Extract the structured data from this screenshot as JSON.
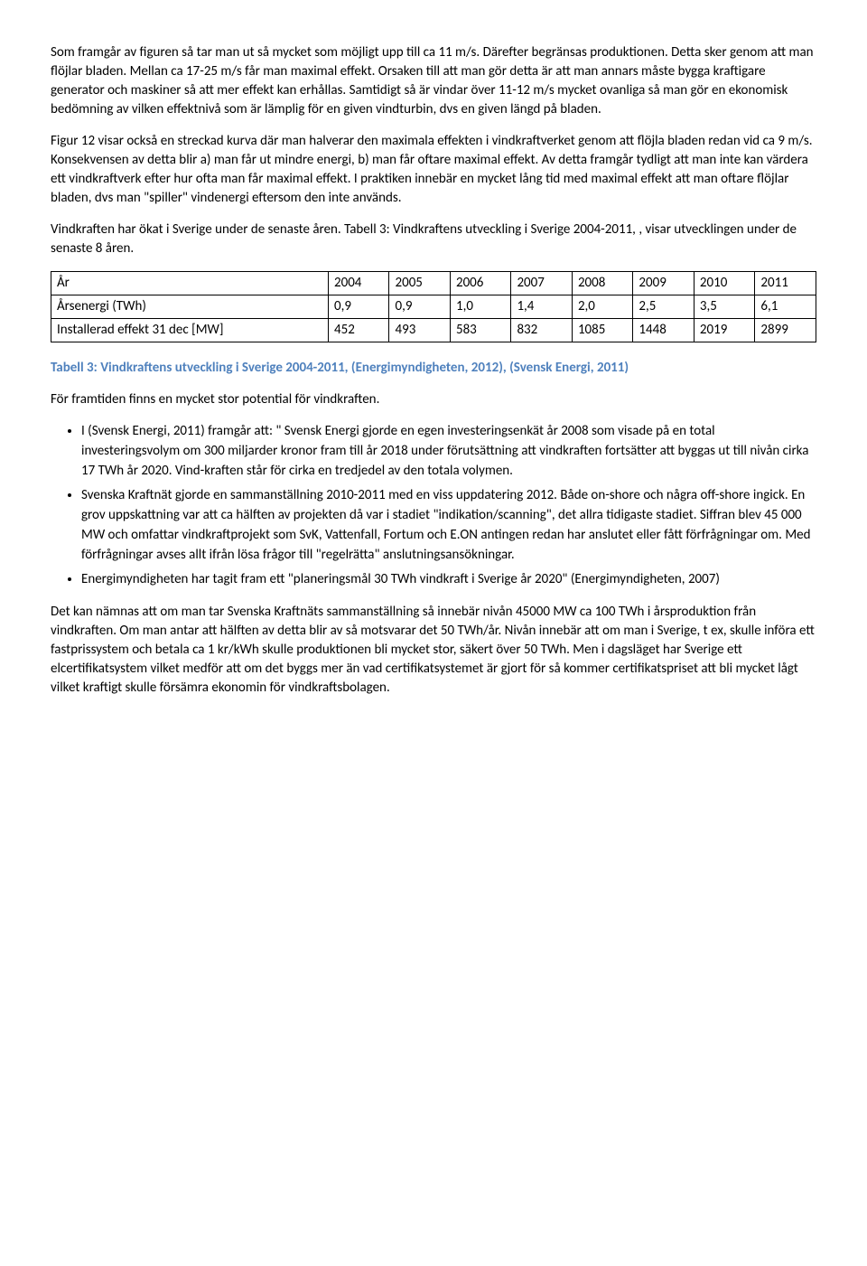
{
  "paragraphs": {
    "p1": "Som framgår av figuren så tar man ut så mycket som möjligt upp till ca 11 m/s. Därefter begränsas produktionen. Detta sker genom att man flöjlar bladen. Mellan ca 17-25 m/s får man maximal effekt. Orsaken till att man gör detta är att man annars måste bygga kraftigare generator och maskiner så att mer effekt kan erhållas. Samtidigt så är vindar över 11-12 m/s mycket ovanliga så man gör en ekonomisk bedömning av vilken effektnivå som är lämplig för en given vindturbin, dvs en given längd på bladen.",
    "p2": "Figur 12 visar också en streckad kurva där man halverar den maximala effekten i vindkraftverket genom att flöjla bladen redan vid ca 9 m/s. Konsekvensen av detta blir a) man får ut mindre energi, b) man får oftare maximal effekt. Av detta framgår tydligt att man inte kan värdera ett vindkraftverk efter hur ofta man får maximal effekt. I praktiken innebär en mycket lång tid med maximal effekt att man oftare flöjlar bladen, dvs man \"spiller\" vindenergi eftersom den inte används.",
    "p3": "Vindkraften har ökat i Sverige under de senaste åren. Tabell 3: Vindkraftens utveckling i Sverige 2004-2011, , visar utvecklingen under de senaste 8 åren.",
    "caption": "Tabell 3: Vindkraftens utveckling i Sverige 2004-2011, (Energimyndigheten, 2012), (Svensk Energi, 2011)",
    "p4": "För framtiden finns en mycket stor potential för vindkraften.",
    "p5": "Det kan nämnas att om man tar Svenska Kraftnäts sammanställning så innebär nivån 45000 MW ca 100 TWh i årsproduktion från vindkraften. Om man antar att hälften av detta blir av så motsvarar det 50 TWh/år. Nivån innebär att om man i Sverige, t ex, skulle införa ett fastprissystem och betala ca 1 kr/kWh skulle produktionen bli mycket stor, säkert över 50 TWh. Men i dagsläget har Sverige ett elcertifikatsystem vilket medför att om det byggs mer än vad certifikatsystemet är gjort för så kommer certifikatspriset att bli mycket lågt vilket kraftigt skulle försämra ekonomin för vindkraftsbolagen."
  },
  "table": {
    "headers": [
      "År",
      "2004",
      "2005",
      "2006",
      "2007",
      "2008",
      "2009",
      "2010",
      "2011"
    ],
    "row1_label": "Årsenergi (TWh)",
    "row1": [
      "0,9",
      "0,9",
      "1,0",
      "1,4",
      "2,0",
      "2,5",
      "3,5",
      "6,1"
    ],
    "row2_label": "Installerad effekt 31 dec [MW]",
    "row2": [
      "452",
      "493",
      "583",
      "832",
      "1085",
      "1448",
      "2019",
      "2899"
    ]
  },
  "bullets": {
    "b1": "I (Svensk Energi, 2011) framgår att: \" Svensk Energi gjorde en egen investeringsenkät år 2008 som visade på en total investeringsvolym om 300 miljarder kronor fram till år 2018 under förutsättning att vindkraften fortsätter att byggas ut till nivån cirka 17 TWh år 2020. Vind-kraften står för cirka en tredjedel av den totala volymen.",
    "b2": "Svenska Kraftnät gjorde en sammanställning 2010-2011 med en viss uppdatering 2012. Både on-shore och några off-shore ingick. En grov uppskattning var att ca hälften av projekten då var i stadiet \"indikation/scanning\", det allra tidigaste stadiet. Siffran blev 45 000 MW och omfattar vindkraftprojekt som SvK, Vattenfall, Fortum och E.ON antingen redan har anslutet eller fått förfrågningar om. Med förfrågningar avses allt ifrån lösa frågor till \"regelrätta\" anslutningsansökningar.",
    "b3": "Energimyndigheten har tagit fram ett \"planeringsmål 30 TWh vindkraft i Sverige år 2020\" (Energimyndigheten, 2007)"
  },
  "styling": {
    "caption_color": "#4f81bd",
    "text_color": "#000000",
    "background_color": "#ffffff",
    "font_family": "Calibri, Arial, sans-serif",
    "body_fontsize": 15,
    "table_border_color": "#000000"
  }
}
